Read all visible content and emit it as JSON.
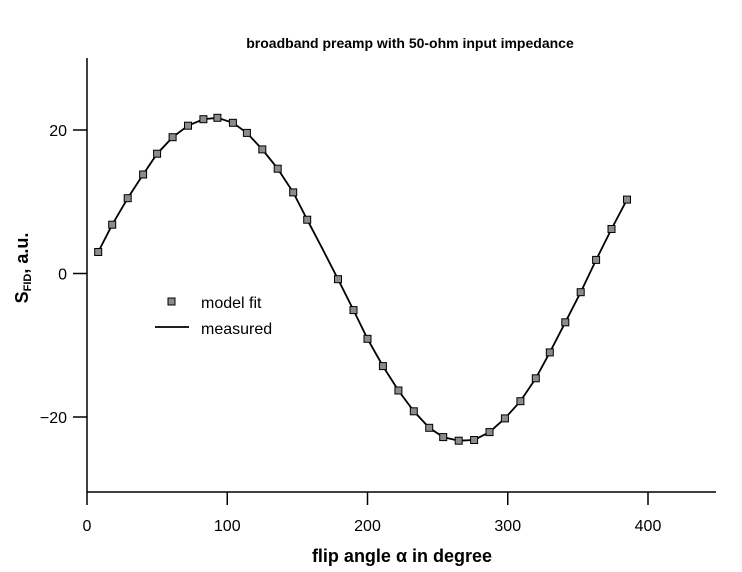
{
  "chart_data": {
    "type": "scatter",
    "title": "broadband preamp with 50-ohm input impedance",
    "xlabel": "flip angle α in degree",
    "ylabel_main": "S",
    "ylabel_sub": "FID",
    "ylabel_tail": ", a.u.",
    "xlim": [
      0,
      450
    ],
    "ylim": [
      -30,
      30
    ],
    "x_ticks": [
      0,
      100,
      200,
      300,
      400
    ],
    "x_tick_labels": [
      "0",
      "100",
      "200",
      "300",
      "400"
    ],
    "y_ticks": [
      -20,
      0,
      20
    ],
    "y_tick_labels": [
      "−20",
      "0",
      "20"
    ],
    "legend_position": "center-left",
    "series": [
      {
        "name": "model fit",
        "style": "square-markers",
        "x": [
          8,
          18,
          29,
          40,
          50,
          61,
          72,
          83,
          93,
          104,
          114,
          125,
          136,
          147,
          157,
          179,
          190,
          200,
          211,
          222,
          233,
          244,
          254,
          265,
          276,
          287,
          298,
          309,
          320,
          330,
          341,
          352,
          363,
          374,
          385
        ],
        "y": [
          3.0,
          6.8,
          10.5,
          13.8,
          16.7,
          19.0,
          20.6,
          21.5,
          21.7,
          21.0,
          19.6,
          17.3,
          14.6,
          11.3,
          7.5,
          -0.8,
          -5.1,
          -9.1,
          -12.9,
          -16.3,
          -19.2,
          -21.5,
          -22.8,
          -23.3,
          -23.2,
          -22.1,
          -20.2,
          -17.8,
          -14.6,
          -11.0,
          -6.8,
          -2.6,
          1.9,
          6.2,
          10.3
        ]
      },
      {
        "name": "measured",
        "style": "solid-line",
        "x": [
          8,
          18,
          29,
          40,
          50,
          61,
          72,
          83,
          93,
          104,
          114,
          125,
          136,
          147,
          157,
          168,
          179,
          190,
          200,
          211,
          222,
          233,
          244,
          254,
          265,
          276,
          287,
          298,
          309,
          320,
          330,
          341,
          352,
          363,
          374,
          385
        ],
        "y": [
          3.0,
          6.8,
          10.5,
          13.8,
          16.7,
          19.0,
          20.6,
          21.5,
          21.7,
          21.0,
          19.6,
          17.3,
          14.6,
          11.3,
          7.5,
          3.4,
          -0.8,
          -5.1,
          -9.1,
          -12.9,
          -16.3,
          -19.2,
          -21.5,
          -22.8,
          -23.3,
          -23.2,
          -22.1,
          -20.2,
          -17.8,
          -14.6,
          -11.0,
          -6.8,
          -2.6,
          1.9,
          6.2,
          10.3
        ]
      }
    ]
  }
}
